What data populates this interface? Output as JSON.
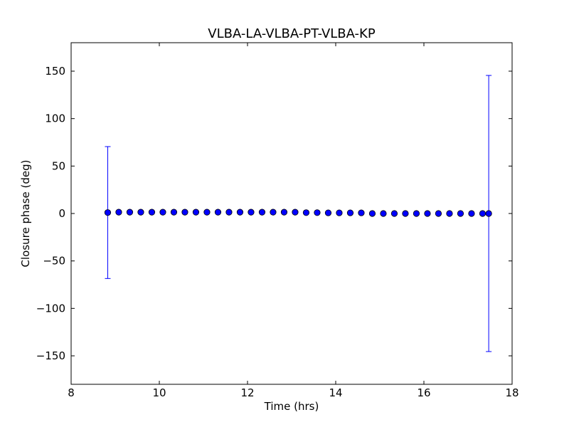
{
  "chart_data": {
    "type": "scatter",
    "title": "VLBA-LA-VLBA-PT-VLBA-KP",
    "xlabel": "Time (hrs)",
    "ylabel": "Closure phase (deg)",
    "xlim": [
      8,
      18
    ],
    "ylim": [
      -180,
      180
    ],
    "xticks": [
      8,
      10,
      12,
      14,
      16,
      18
    ],
    "yticks": [
      -150,
      -100,
      -50,
      0,
      50,
      100,
      150
    ],
    "xtick_labels": [
      "8",
      "10",
      "12",
      "14",
      "16",
      "18"
    ],
    "ytick_labels": [
      "−150",
      "−100",
      "−50",
      "0",
      "50",
      "100",
      "150"
    ],
    "grid": false,
    "point_color": "#0000ff",
    "errorbar_color": "#0000ff",
    "points": [
      {
        "x": 8.83,
        "y": 1.0,
        "err": 69.5
      },
      {
        "x": 9.08,
        "y": 1.4
      },
      {
        "x": 9.33,
        "y": 1.4
      },
      {
        "x": 9.58,
        "y": 1.4
      },
      {
        "x": 9.83,
        "y": 1.4
      },
      {
        "x": 10.08,
        "y": 1.4
      },
      {
        "x": 10.33,
        "y": 1.4
      },
      {
        "x": 10.58,
        "y": 1.4
      },
      {
        "x": 10.83,
        "y": 1.4
      },
      {
        "x": 11.08,
        "y": 1.4
      },
      {
        "x": 11.33,
        "y": 1.4
      },
      {
        "x": 11.58,
        "y": 1.4
      },
      {
        "x": 11.83,
        "y": 1.4
      },
      {
        "x": 12.08,
        "y": 1.4
      },
      {
        "x": 12.33,
        "y": 1.4
      },
      {
        "x": 12.58,
        "y": 1.4
      },
      {
        "x": 12.83,
        "y": 1.4
      },
      {
        "x": 13.08,
        "y": 1.4
      },
      {
        "x": 13.33,
        "y": 0.9
      },
      {
        "x": 13.58,
        "y": 0.9
      },
      {
        "x": 13.83,
        "y": 0.7
      },
      {
        "x": 14.08,
        "y": 0.7
      },
      {
        "x": 14.33,
        "y": 0.7
      },
      {
        "x": 14.58,
        "y": 0.7
      },
      {
        "x": 14.83,
        "y": 0.0
      },
      {
        "x": 15.08,
        "y": 0.0
      },
      {
        "x": 15.33,
        "y": 0.0
      },
      {
        "x": 15.58,
        "y": 0.0
      },
      {
        "x": 15.83,
        "y": 0.0
      },
      {
        "x": 16.08,
        "y": 0.0
      },
      {
        "x": 16.33,
        "y": 0.0
      },
      {
        "x": 16.58,
        "y": 0.0
      },
      {
        "x": 16.83,
        "y": 0.0
      },
      {
        "x": 17.08,
        "y": 0.0
      },
      {
        "x": 17.33,
        "y": 0.0
      },
      {
        "x": 17.47,
        "y": 0.0,
        "err": 145.5
      }
    ]
  }
}
